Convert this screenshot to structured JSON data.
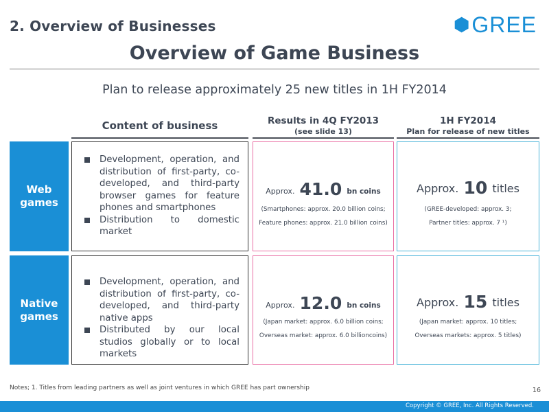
{
  "header": {
    "section_title": "2. Overview of Businesses",
    "logo_text": "GREE",
    "main_title": "Overview of Game Business"
  },
  "subtitle": "Plan to release approximately 25 new titles in 1H FY2014",
  "columns": {
    "content": "Content of business",
    "results_line1": "Results in 4Q FY2013",
    "results_line2": "(see slide 13)",
    "plan_line1": "1H FY2014",
    "plan_line2": "Plan for release of new titles"
  },
  "rows": [
    {
      "label_line1": "Web",
      "label_line2": "games",
      "bullets": [
        "Development, operation, and distribution of first-party, co-developed, and third-party browser games for feature phones and smartphones",
        "Distribution to domestic market"
      ],
      "results": {
        "prefix": "Approx.",
        "value": "41.0",
        "unit": "bn coins",
        "detail_line1": "(Smartphones: approx. 20.0 billion coins;",
        "detail_line2": "Feature phones: approx. 21.0 billion coins)"
      },
      "plan": {
        "prefix": "Approx.",
        "value": "10",
        "unit": "titles",
        "detail_line1": "(GREE-developed: approx. 3;",
        "detail_line2": "Partner titles: approx. 7 ¹)"
      }
    },
    {
      "label_line1": "Native",
      "label_line2": "games",
      "bullets": [
        "Development, operation, and distribution of first-party, co-developed, and third-party native apps",
        "Distributed by our local studios globally or to local markets"
      ],
      "results": {
        "prefix": "Approx.",
        "value": "12.0",
        "unit": "bn coins",
        "detail_line1": "(Japan market: approx. 6.0 billion coins;",
        "detail_line2": "Overseas market: approx. 6.0 billioncoins)"
      },
      "plan": {
        "prefix": "Approx.",
        "value": "15",
        "unit": "titles",
        "detail_line1": "(Japan market: approx. 10 titles;",
        "detail_line2": "Overseas markets: approx. 5 titles)"
      }
    }
  ],
  "notes": "Notes; 1. Titles from leading partners as well as joint ventures in which GREE has part ownership",
  "page_number": "16",
  "copyright": "Copyright © GREE, Inc. All Rights Reserved.",
  "colors": {
    "brand_blue": "#1a8fd6",
    "results_border": "#e96fa4",
    "plan_border": "#49b3d9",
    "title_text": "#3d4654"
  }
}
